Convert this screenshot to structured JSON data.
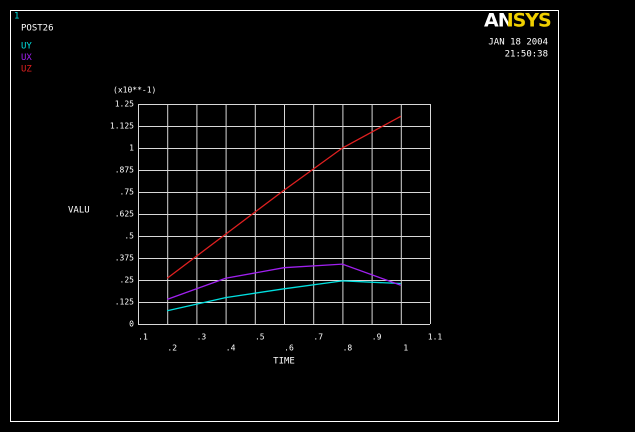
{
  "chart_data": {
    "type": "line",
    "window_number": "1",
    "label": "POST26",
    "logo": "ANSYS",
    "date": "JAN 18 2004",
    "time": "21:50:38",
    "y_multiplier": "(x10**-1)",
    "xlabel": "TIME",
    "ylabel": "VALU",
    "x": [
      0.2,
      0.4,
      0.6,
      0.8,
      1.0
    ],
    "series": [
      {
        "name": "UY",
        "color": "#00e0e0",
        "values": [
          0.075,
          0.15,
          0.2,
          0.245,
          0.23
        ]
      },
      {
        "name": "UX",
        "color": "#a020f0",
        "values": [
          0.14,
          0.26,
          0.32,
          0.34,
          0.22
        ]
      },
      {
        "name": "UZ",
        "color": "#e02020",
        "values": [
          0.26,
          0.51,
          0.76,
          1.0,
          1.18
        ]
      }
    ],
    "xlim": [
      0.1,
      1.1
    ],
    "xticks": [
      {
        "value": 0.1,
        "label": ".1"
      },
      {
        "value": 0.2,
        "label": ".2"
      },
      {
        "value": 0.3,
        "label": ".3"
      },
      {
        "value": 0.4,
        "label": ".4"
      },
      {
        "value": 0.5,
        "label": ".5"
      },
      {
        "value": 0.6,
        "label": ".6"
      },
      {
        "value": 0.7,
        "label": ".7"
      },
      {
        "value": 0.8,
        "label": ".8"
      },
      {
        "value": 0.9,
        "label": ".9"
      },
      1,
      1.1
    ],
    "ylim": [
      0,
      1.25
    ],
    "yticks": [
      0,
      {
        "value": 0.125,
        "label": ".125"
      },
      {
        "value": 0.25,
        "label": ".25"
      },
      {
        "value": 0.375,
        "label": ".375"
      },
      {
        "value": 0.5,
        "label": ".5"
      },
      {
        "value": 0.625,
        "label": ".625"
      },
      {
        "value": 0.75,
        "label": ".75"
      },
      {
        "value": 0.875,
        "label": ".875"
      },
      1,
      1.125,
      1.25
    ],
    "grid": true
  }
}
